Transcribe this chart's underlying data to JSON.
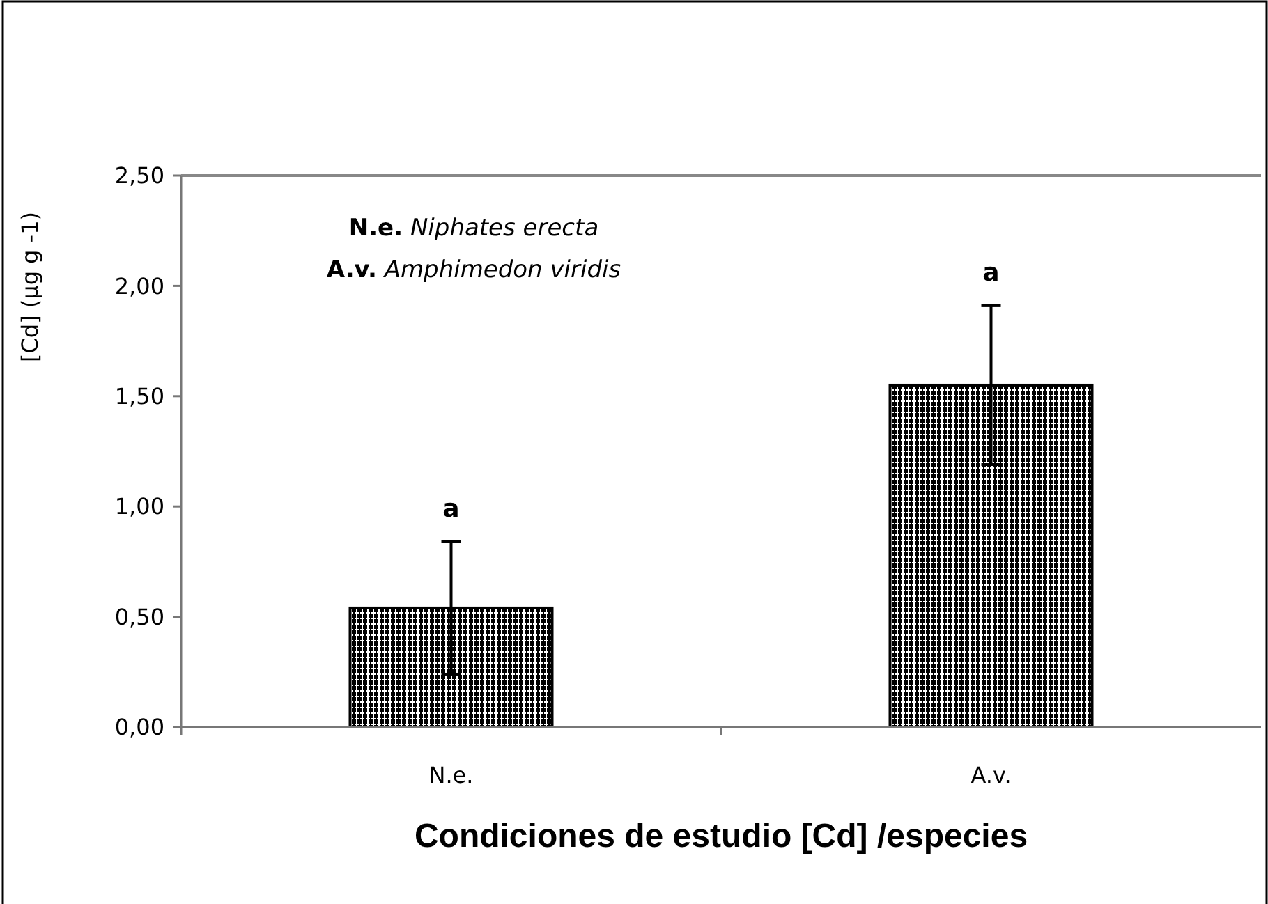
{
  "chart_data": {
    "type": "bar",
    "xlabel": "Condiciones de estudio [Cd] /especies",
    "ylabel": "[Cd]  (µg g -1)",
    "categories": [
      "N.e.",
      "A.v."
    ],
    "values": [
      0.54,
      1.55
    ],
    "errors": [
      0.3,
      0.36
    ],
    "color": "#000000",
    "ylim": [
      0,
      2.5
    ],
    "yticks": [
      {
        "value": 0,
        "label": "0,00"
      },
      {
        "value": 0.5,
        "label": "0,50"
      },
      {
        "value": 1,
        "label": "1,00"
      },
      {
        "value": 1.5,
        "label": "1,50"
      },
      {
        "value": 2,
        "label": "2,00"
      },
      {
        "value": 2.5,
        "label": "2,50"
      }
    ],
    "annotations": [
      "N.e. Niphates erecta",
      "A.v. Amphimedon viridis",
      {
        "text": "a",
        "x": "N.e.",
        "y": 0.84
      },
      {
        "text": "a",
        "x": "A.v.",
        "y": 1.91
      }
    ],
    "grid": false
  }
}
